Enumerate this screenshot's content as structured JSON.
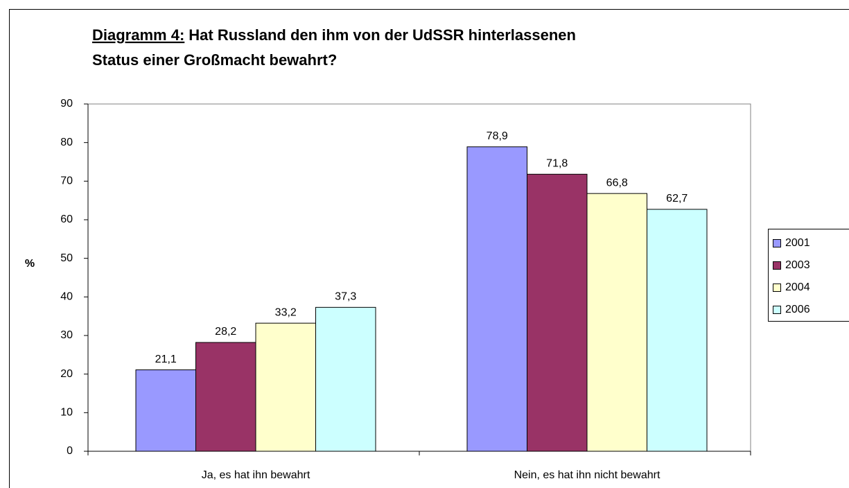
{
  "chart_data": {
    "type": "bar",
    "title": {
      "label": "Diagramm 4:",
      "lines": [
        "Hat Russland den ihm von der UdSSR hinterlassenen",
        "Status einer Großmacht bewahrt?"
      ]
    },
    "ylabel": "%",
    "categories": [
      "Ja, es hat ihn bewahrt",
      "Nein, es hat ihn nicht bewahrt"
    ],
    "series": [
      {
        "name": "2001",
        "color": "#9999ff",
        "values": [
          21.1,
          78.9
        ],
        "value_labels": [
          "21,1",
          "78,9"
        ]
      },
      {
        "name": "2003",
        "color": "#993366",
        "values": [
          28.2,
          71.8
        ],
        "value_labels": [
          "28,2",
          "71,8"
        ]
      },
      {
        "name": "2004",
        "color": "#ffffcc",
        "values": [
          33.2,
          66.8
        ],
        "value_labels": [
          "33,2",
          "66,8"
        ]
      },
      {
        "name": "2006",
        "color": "#ccffff",
        "values": [
          37.3,
          62.7
        ],
        "value_labels": [
          "37,3",
          "62,7"
        ]
      }
    ],
    "ylim": [
      0,
      90
    ],
    "yticks": [
      0,
      10,
      20,
      30,
      40,
      50,
      60,
      70,
      80,
      90
    ],
    "grid": false,
    "legend": "right"
  }
}
